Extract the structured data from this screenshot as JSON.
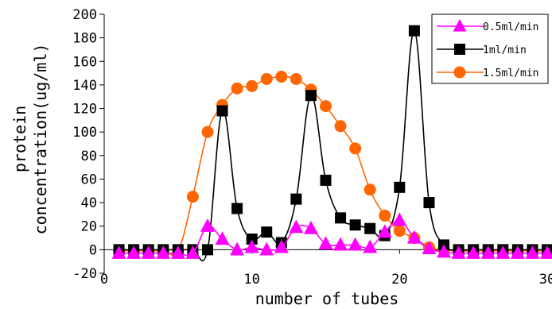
{
  "chart_data": {
    "type": "line",
    "ylabel_lines": [
      "protein",
      "concentration(ug/ml)"
    ],
    "xlabel": "number of tubes",
    "xlim": [
      0,
      30
    ],
    "ylim": [
      -20,
      200
    ],
    "xticks": [
      0,
      10,
      20,
      30
    ],
    "yticks": [
      -20,
      0,
      20,
      40,
      60,
      80,
      100,
      120,
      140,
      160,
      180,
      200
    ],
    "grid": false,
    "legend_position": "top-right",
    "series": [
      {
        "name": "0.5ml/min",
        "color": "#ff00ff",
        "marker": "triangle",
        "x": [
          1,
          2,
          3,
          4,
          5,
          6,
          7,
          8,
          9,
          10,
          11,
          12,
          13,
          14,
          15,
          16,
          17,
          18,
          19,
          20,
          21,
          22,
          23,
          24,
          25,
          26,
          27,
          28,
          29,
          30
        ],
        "y": [
          -3,
          -3,
          -3,
          -3,
          -3,
          -3,
          20,
          9,
          0,
          2,
          0,
          2,
          19,
          18,
          5,
          4,
          4,
          2,
          15,
          25,
          10,
          1,
          -2,
          -3,
          -3,
          -3,
          -3,
          -3,
          -3,
          -3
        ]
      },
      {
        "name": "1ml/min",
        "color": "#000000",
        "marker": "square",
        "x": [
          1,
          2,
          3,
          4,
          5,
          6,
          7,
          8,
          9,
          10,
          11,
          12,
          13,
          14,
          15,
          16,
          17,
          18,
          19,
          20,
          21,
          22,
          23,
          24,
          25,
          26,
          27,
          28,
          29,
          30
        ],
        "y": [
          0,
          0,
          0,
          0,
          0,
          0,
          0,
          118,
          35,
          9,
          15,
          6,
          43,
          131,
          59,
          27,
          21,
          18,
          12,
          53,
          186,
          40,
          4,
          0,
          0,
          0,
          0,
          0,
          0,
          0
        ]
      },
      {
        "name": "1.5ml/min",
        "color": "#ff6600",
        "marker": "circle",
        "x": [
          1,
          2,
          3,
          4,
          5,
          6,
          7,
          8,
          9,
          10,
          11,
          12,
          13,
          14,
          15,
          16,
          17,
          18,
          19,
          20,
          21,
          22,
          23,
          24,
          25,
          26,
          27,
          28,
          29,
          30
        ],
        "y": [
          -1,
          -1,
          -1,
          -1,
          -1,
          45,
          100,
          123,
          137,
          139,
          145,
          147,
          145,
          136,
          122,
          105,
          86,
          51,
          29,
          16,
          10,
          2,
          0,
          -1,
          -1,
          -1,
          -1,
          -1,
          -1,
          -1
        ]
      }
    ]
  }
}
